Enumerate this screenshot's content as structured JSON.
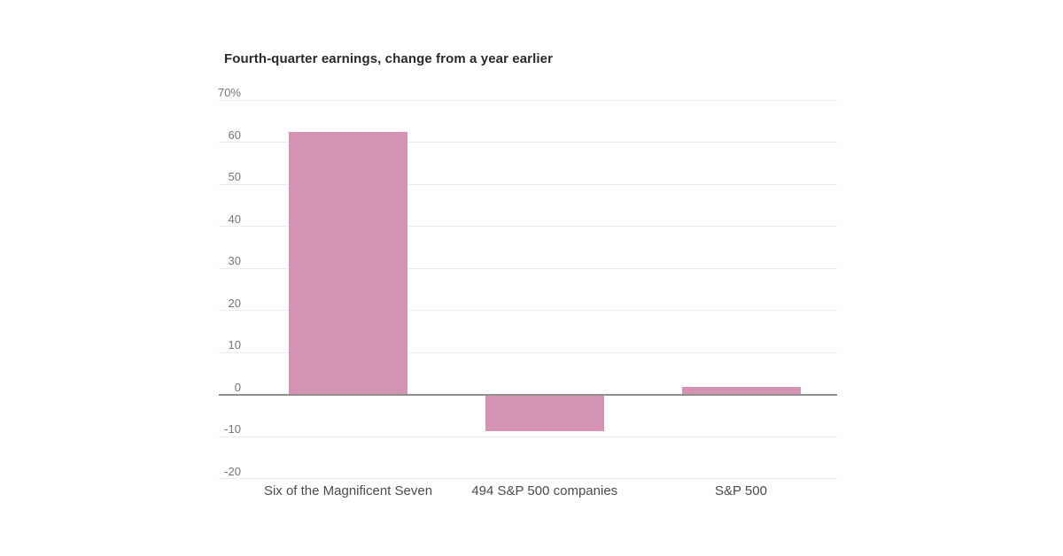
{
  "header": {
    "title": "Fourth-quarter earnings, change from a year earlier"
  },
  "chart_data": {
    "type": "bar",
    "title": "Fourth-quarter earnings, change from a year earlier",
    "categories": [
      "Six of the Magnificent Seven",
      "494 S&P 500 companies",
      "S&P 500"
    ],
    "values": [
      62.5,
      -8.8,
      1.7
    ],
    "unit": "%",
    "xlabel": "",
    "ylabel": "",
    "ylim": [
      -20,
      70
    ],
    "ytick_step": 10,
    "yticks": [
      70,
      60,
      50,
      40,
      30,
      20,
      10,
      0,
      -10,
      -20
    ],
    "ytick_labels": [
      "70%",
      "60",
      "50",
      "40",
      "30",
      "20",
      "10",
      "0",
      "-10",
      "-20"
    ],
    "grid": true,
    "legend": false,
    "colors": {
      "bar": "#d493b2",
      "gridline": "#ededed",
      "zero_line": "#8f8f8f",
      "title_text": "#2a2a2a",
      "ytick_text": "#757575",
      "category_text": "#4b4b4b",
      "background": "#ffffff"
    }
  }
}
